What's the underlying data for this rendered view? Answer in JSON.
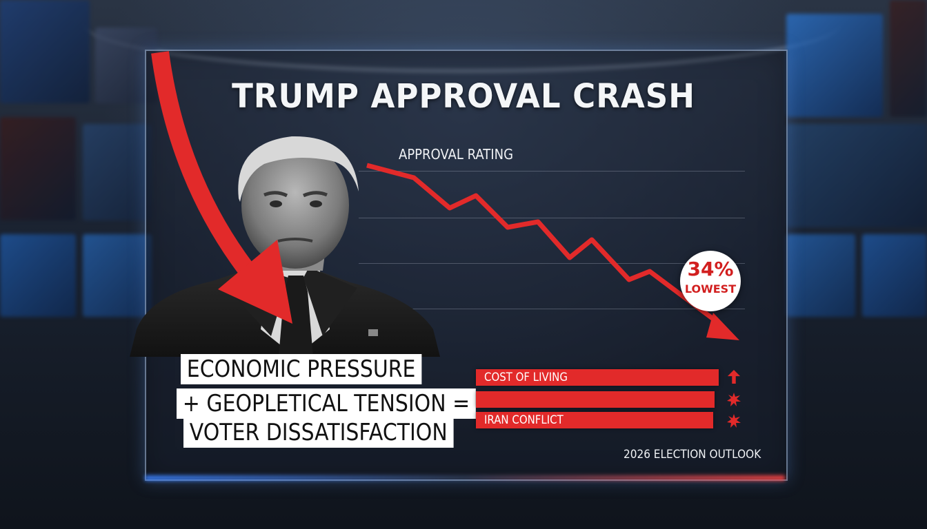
{
  "headline": "TRUMP APPROVAL CRASH",
  "chart": {
    "label": "APPROVAL RATING",
    "badge_value": "34%",
    "badge_text": "LOWEST"
  },
  "statement": {
    "line1": "ECONOMIC PRESSURE",
    "line2": "+ GEOPLETICAL TENSION =",
    "line3": "VOTER DISSATISFACTION"
  },
  "factors": [
    {
      "label": "COST OF LIVING",
      "icon": "up-arrow-icon"
    },
    {
      "label": "",
      "icon": "explosion-icon"
    },
    {
      "label": "IRAN CONFLICT",
      "icon": "explosion-icon"
    }
  ],
  "footer": "2026 ELECTION OUTLOOK",
  "colors": {
    "accent_red": "#e22a2a",
    "panel_border": "#aac3e6",
    "text": "#f4f6f8"
  }
}
